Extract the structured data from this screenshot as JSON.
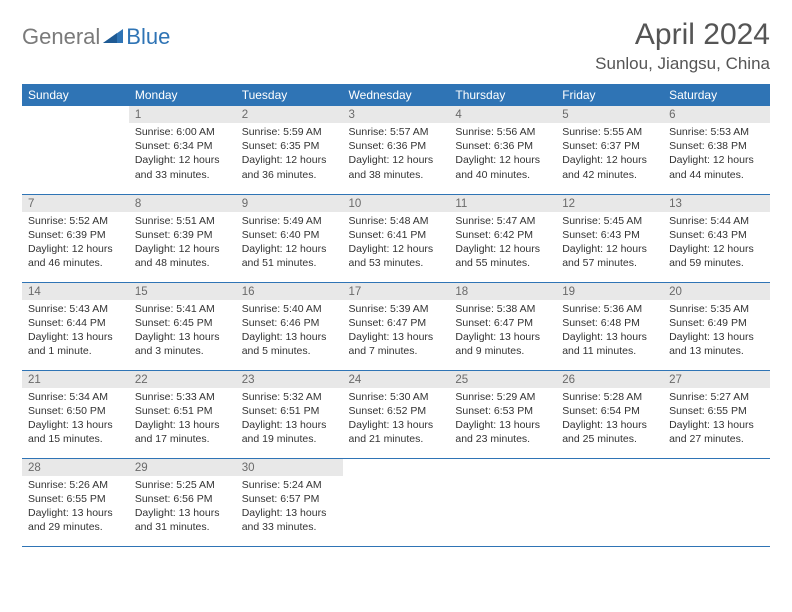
{
  "brand": {
    "part1": "General",
    "part2": "Blue"
  },
  "title": "April 2024",
  "location": "Sunlou, Jiangsu, China",
  "colors": {
    "header_bg": "#2f74b5",
    "header_text": "#ffffff",
    "daynum_bg": "#e8e8e8",
    "daynum_text": "#6a6a6a",
    "rule": "#2f74b5",
    "logo_gray": "#7a7a7a",
    "logo_blue": "#2f74b5"
  },
  "weekdays": [
    "Sunday",
    "Monday",
    "Tuesday",
    "Wednesday",
    "Thursday",
    "Friday",
    "Saturday"
  ],
  "weeks": [
    [
      {
        "day": "",
        "sunrise": "",
        "sunset": "",
        "daylight": ""
      },
      {
        "day": "1",
        "sunrise": "Sunrise: 6:00 AM",
        "sunset": "Sunset: 6:34 PM",
        "daylight": "Daylight: 12 hours and 33 minutes."
      },
      {
        "day": "2",
        "sunrise": "Sunrise: 5:59 AM",
        "sunset": "Sunset: 6:35 PM",
        "daylight": "Daylight: 12 hours and 36 minutes."
      },
      {
        "day": "3",
        "sunrise": "Sunrise: 5:57 AM",
        "sunset": "Sunset: 6:36 PM",
        "daylight": "Daylight: 12 hours and 38 minutes."
      },
      {
        "day": "4",
        "sunrise": "Sunrise: 5:56 AM",
        "sunset": "Sunset: 6:36 PM",
        "daylight": "Daylight: 12 hours and 40 minutes."
      },
      {
        "day": "5",
        "sunrise": "Sunrise: 5:55 AM",
        "sunset": "Sunset: 6:37 PM",
        "daylight": "Daylight: 12 hours and 42 minutes."
      },
      {
        "day": "6",
        "sunrise": "Sunrise: 5:53 AM",
        "sunset": "Sunset: 6:38 PM",
        "daylight": "Daylight: 12 hours and 44 minutes."
      }
    ],
    [
      {
        "day": "7",
        "sunrise": "Sunrise: 5:52 AM",
        "sunset": "Sunset: 6:39 PM",
        "daylight": "Daylight: 12 hours and 46 minutes."
      },
      {
        "day": "8",
        "sunrise": "Sunrise: 5:51 AM",
        "sunset": "Sunset: 6:39 PM",
        "daylight": "Daylight: 12 hours and 48 minutes."
      },
      {
        "day": "9",
        "sunrise": "Sunrise: 5:49 AM",
        "sunset": "Sunset: 6:40 PM",
        "daylight": "Daylight: 12 hours and 51 minutes."
      },
      {
        "day": "10",
        "sunrise": "Sunrise: 5:48 AM",
        "sunset": "Sunset: 6:41 PM",
        "daylight": "Daylight: 12 hours and 53 minutes."
      },
      {
        "day": "11",
        "sunrise": "Sunrise: 5:47 AM",
        "sunset": "Sunset: 6:42 PM",
        "daylight": "Daylight: 12 hours and 55 minutes."
      },
      {
        "day": "12",
        "sunrise": "Sunrise: 5:45 AM",
        "sunset": "Sunset: 6:43 PM",
        "daylight": "Daylight: 12 hours and 57 minutes."
      },
      {
        "day": "13",
        "sunrise": "Sunrise: 5:44 AM",
        "sunset": "Sunset: 6:43 PM",
        "daylight": "Daylight: 12 hours and 59 minutes."
      }
    ],
    [
      {
        "day": "14",
        "sunrise": "Sunrise: 5:43 AM",
        "sunset": "Sunset: 6:44 PM",
        "daylight": "Daylight: 13 hours and 1 minute."
      },
      {
        "day": "15",
        "sunrise": "Sunrise: 5:41 AM",
        "sunset": "Sunset: 6:45 PM",
        "daylight": "Daylight: 13 hours and 3 minutes."
      },
      {
        "day": "16",
        "sunrise": "Sunrise: 5:40 AM",
        "sunset": "Sunset: 6:46 PM",
        "daylight": "Daylight: 13 hours and 5 minutes."
      },
      {
        "day": "17",
        "sunrise": "Sunrise: 5:39 AM",
        "sunset": "Sunset: 6:47 PM",
        "daylight": "Daylight: 13 hours and 7 minutes."
      },
      {
        "day": "18",
        "sunrise": "Sunrise: 5:38 AM",
        "sunset": "Sunset: 6:47 PM",
        "daylight": "Daylight: 13 hours and 9 minutes."
      },
      {
        "day": "19",
        "sunrise": "Sunrise: 5:36 AM",
        "sunset": "Sunset: 6:48 PM",
        "daylight": "Daylight: 13 hours and 11 minutes."
      },
      {
        "day": "20",
        "sunrise": "Sunrise: 5:35 AM",
        "sunset": "Sunset: 6:49 PM",
        "daylight": "Daylight: 13 hours and 13 minutes."
      }
    ],
    [
      {
        "day": "21",
        "sunrise": "Sunrise: 5:34 AM",
        "sunset": "Sunset: 6:50 PM",
        "daylight": "Daylight: 13 hours and 15 minutes."
      },
      {
        "day": "22",
        "sunrise": "Sunrise: 5:33 AM",
        "sunset": "Sunset: 6:51 PM",
        "daylight": "Daylight: 13 hours and 17 minutes."
      },
      {
        "day": "23",
        "sunrise": "Sunrise: 5:32 AM",
        "sunset": "Sunset: 6:51 PM",
        "daylight": "Daylight: 13 hours and 19 minutes."
      },
      {
        "day": "24",
        "sunrise": "Sunrise: 5:30 AM",
        "sunset": "Sunset: 6:52 PM",
        "daylight": "Daylight: 13 hours and 21 minutes."
      },
      {
        "day": "25",
        "sunrise": "Sunrise: 5:29 AM",
        "sunset": "Sunset: 6:53 PM",
        "daylight": "Daylight: 13 hours and 23 minutes."
      },
      {
        "day": "26",
        "sunrise": "Sunrise: 5:28 AM",
        "sunset": "Sunset: 6:54 PM",
        "daylight": "Daylight: 13 hours and 25 minutes."
      },
      {
        "day": "27",
        "sunrise": "Sunrise: 5:27 AM",
        "sunset": "Sunset: 6:55 PM",
        "daylight": "Daylight: 13 hours and 27 minutes."
      }
    ],
    [
      {
        "day": "28",
        "sunrise": "Sunrise: 5:26 AM",
        "sunset": "Sunset: 6:55 PM",
        "daylight": "Daylight: 13 hours and 29 minutes."
      },
      {
        "day": "29",
        "sunrise": "Sunrise: 5:25 AM",
        "sunset": "Sunset: 6:56 PM",
        "daylight": "Daylight: 13 hours and 31 minutes."
      },
      {
        "day": "30",
        "sunrise": "Sunrise: 5:24 AM",
        "sunset": "Sunset: 6:57 PM",
        "daylight": "Daylight: 13 hours and 33 minutes."
      },
      {
        "day": "",
        "sunrise": "",
        "sunset": "",
        "daylight": ""
      },
      {
        "day": "",
        "sunrise": "",
        "sunset": "",
        "daylight": ""
      },
      {
        "day": "",
        "sunrise": "",
        "sunset": "",
        "daylight": ""
      },
      {
        "day": "",
        "sunrise": "",
        "sunset": "",
        "daylight": ""
      }
    ]
  ]
}
